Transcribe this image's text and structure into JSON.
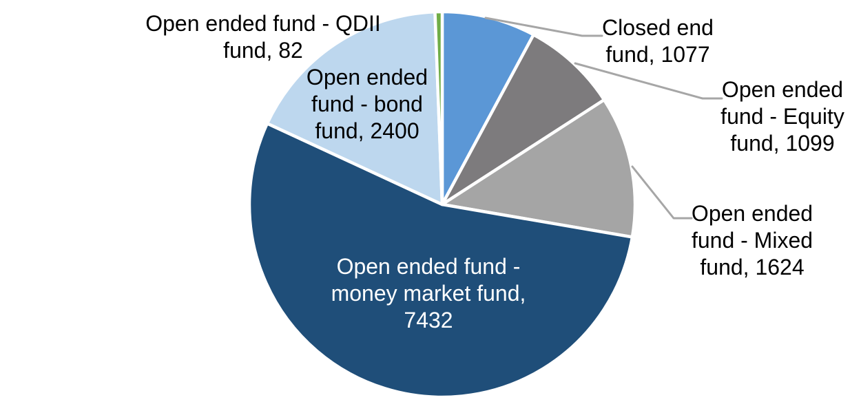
{
  "chart_data": {
    "type": "pie",
    "title": "",
    "legend": "none",
    "data_label_format": "category name, value",
    "background_color": "#FFFFFF",
    "leader_line_color": "#A6A6A6",
    "start_angle_deg": 0,
    "direction": "clockwise",
    "total": 13714,
    "slices": [
      {
        "id": "closed-end",
        "category": "Closed end fund",
        "value": 1077,
        "color": "#5B97D6",
        "label_text": "Closed end fund, 1077",
        "label_lines": [
          "Closed end",
          "fund, 1077"
        ],
        "label_placement": "outside-right",
        "has_leader_line": true
      },
      {
        "id": "equity",
        "category": "Open ended fund - Equity fund",
        "value": 1099,
        "color": "#7D7B7D",
        "label_text": "Open ended fund - Equity fund, 1099",
        "label_lines": [
          "Open ended",
          "fund - Equity",
          "fund, 1099"
        ],
        "label_placement": "outside-right",
        "has_leader_line": true
      },
      {
        "id": "mixed",
        "category": "Open ended fund - Mixed fund",
        "value": 1624,
        "color": "#A5A5A5",
        "label_text": "Open ended fund - Mixed fund, 1624",
        "label_lines": [
          "Open ended",
          "fund - Mixed",
          "fund, 1624"
        ],
        "label_placement": "outside-right",
        "has_leader_line": true
      },
      {
        "id": "money-market",
        "category": "Open ended fund - money market fund",
        "value": 7432,
        "color": "#1F4E79",
        "label_text": "Open ended fund - money market fund, 7432",
        "label_lines": [
          "Open ended fund -",
          "money market fund,",
          "7432"
        ],
        "label_placement": "inside",
        "label_text_color": "#FFFFFF",
        "has_leader_line": false
      },
      {
        "id": "bond",
        "category": "Open ended fund - bond fund",
        "value": 2400,
        "color": "#BDD7EE",
        "label_text": "Open ended fund - bond fund, 2400",
        "label_lines": [
          "Open ended",
          "fund - bond",
          "fund, 2400"
        ],
        "label_placement": "inside-top-left",
        "has_leader_line": false
      },
      {
        "id": "qdii",
        "category": "Open ended fund - QDII fund",
        "value": 82,
        "color": "#70AD47",
        "label_text": "Open ended fund - QDII fund, 82",
        "label_lines": [
          "Open ended fund - QDII",
          "fund, 82"
        ],
        "label_placement": "outside-top-left",
        "has_leader_line": false
      }
    ]
  }
}
